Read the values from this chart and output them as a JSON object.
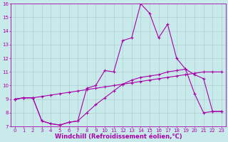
{
  "xlabel": "Windchill (Refroidissement éolien,°C)",
  "xlim": [
    -0.5,
    23.5
  ],
  "ylim": [
    7,
    16
  ],
  "xticks": [
    0,
    1,
    2,
    3,
    4,
    5,
    6,
    7,
    8,
    9,
    10,
    11,
    12,
    13,
    14,
    15,
    16,
    17,
    18,
    19,
    20,
    21,
    22,
    23
  ],
  "yticks": [
    7,
    8,
    9,
    10,
    11,
    12,
    13,
    14,
    15,
    16
  ],
  "bg_color": "#c8eaea",
  "line_color": "#aa00aa",
  "line1_x": [
    0,
    1,
    2,
    3,
    4,
    5,
    6,
    7,
    8,
    9,
    10,
    11,
    12,
    13,
    14,
    15,
    16,
    17,
    18,
    19,
    20,
    21,
    22,
    23
  ],
  "line1_y": [
    9.0,
    9.1,
    9.1,
    7.4,
    7.2,
    7.1,
    7.3,
    7.4,
    9.8,
    10.0,
    11.1,
    11.0,
    13.3,
    13.5,
    16.0,
    15.3,
    13.5,
    14.5,
    12.0,
    11.2,
    9.4,
    8.0,
    8.1,
    8.1
  ],
  "line2_x": [
    0,
    1,
    2,
    3,
    4,
    5,
    6,
    7,
    8,
    9,
    10,
    11,
    12,
    13,
    14,
    15,
    16,
    17,
    18,
    19,
    20,
    21,
    22,
    23
  ],
  "line2_y": [
    9.0,
    9.1,
    9.1,
    9.2,
    9.3,
    9.4,
    9.5,
    9.6,
    9.7,
    9.8,
    9.9,
    10.0,
    10.1,
    10.2,
    10.3,
    10.4,
    10.5,
    10.6,
    10.7,
    10.8,
    10.9,
    11.0,
    11.0,
    11.0
  ],
  "line3_x": [
    0,
    1,
    2,
    3,
    4,
    5,
    6,
    7,
    8,
    9,
    10,
    11,
    12,
    13,
    14,
    15,
    16,
    17,
    18,
    19,
    20,
    21,
    22,
    23
  ],
  "line3_y": [
    9.0,
    9.1,
    9.1,
    7.4,
    7.2,
    7.1,
    7.3,
    7.4,
    8.0,
    8.6,
    9.1,
    9.6,
    10.1,
    10.4,
    10.6,
    10.7,
    10.8,
    11.0,
    11.1,
    11.2,
    10.8,
    10.5,
    8.1,
    8.1
  ],
  "grid_color": "#a8c8c8",
  "marker": "+",
  "markersize": 3,
  "linewidth": 0.8,
  "tick_fontsize": 5,
  "xlabel_fontsize": 6
}
